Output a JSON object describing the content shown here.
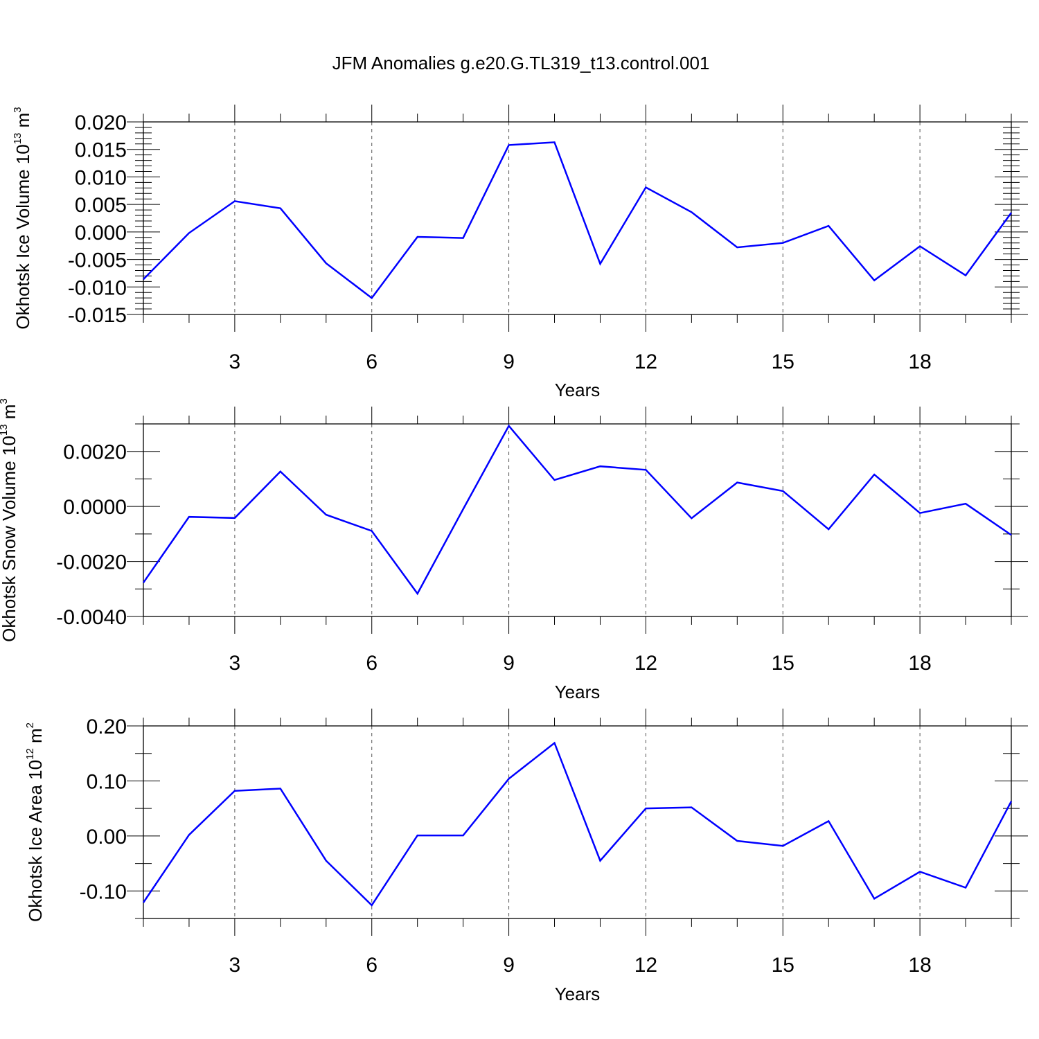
{
  "title": "JFM Anomalies g.e20.G.TL319_t13.control.001",
  "line_color": "#0000ff",
  "chart_data": [
    {
      "type": "line",
      "xlabel": "Years",
      "ylabel": {
        "text": "Okhotsk Ice Volume 10",
        "exp": "13",
        "unit": " m",
        "unit_exp": "3"
      },
      "xlim": [
        1,
        20
      ],
      "ylim": [
        -0.015,
        0.02
      ],
      "x_major_ticks": [
        3,
        6,
        9,
        12,
        15,
        18
      ],
      "x_tick_labels": [
        "3",
        "6",
        "9",
        "12",
        "15",
        "18"
      ],
      "y_major_ticks": [
        -0.015,
        -0.01,
        -0.005,
        0,
        0.005,
        0.01,
        0.015,
        0.02
      ],
      "y_tick_labels": [
        "-0.015",
        "-0.010",
        "-0.005",
        "0.000",
        "0.005",
        "0.010",
        "0.015",
        "0.020"
      ],
      "y_minor_step": 0.001,
      "grid": "vertical dashed at major x ticks",
      "x": [
        1,
        2,
        3,
        4,
        5,
        6,
        7,
        8,
        9,
        10,
        11,
        12,
        13,
        14,
        15,
        16,
        17,
        18,
        19,
        20
      ],
      "values": [
        -0.0086,
        -0.0002,
        0.0056,
        0.0043,
        -0.0057,
        -0.012,
        -0.0009,
        -0.0011,
        0.0158,
        0.0163,
        -0.0058,
        0.0081,
        0.0036,
        -0.0028,
        -0.002,
        0.0011,
        -0.0088,
        -0.0026,
        -0.0079,
        0.0035
      ]
    },
    {
      "type": "line",
      "xlabel": "Years",
      "ylabel": {
        "text": "Okhotsk Snow Volume 10",
        "exp": "13",
        "unit": " m",
        "unit_exp": "3"
      },
      "xlim": [
        1,
        20
      ],
      "ylim": [
        -0.004,
        0.003
      ],
      "x_major_ticks": [
        3,
        6,
        9,
        12,
        15,
        18
      ],
      "x_tick_labels": [
        "3",
        "6",
        "9",
        "12",
        "15",
        "18"
      ],
      "y_major_ticks": [
        -0.004,
        -0.002,
        0,
        0.002
      ],
      "y_tick_labels": [
        "-0.0040",
        "-0.0020",
        "0.0000",
        "0.0020"
      ],
      "y_minor_step": 0.001,
      "grid": "vertical dashed at major x ticks",
      "x": [
        1,
        2,
        3,
        4,
        5,
        6,
        7,
        8,
        9,
        10,
        11,
        12,
        13,
        14,
        15,
        16,
        17,
        18,
        19,
        20
      ],
      "values": [
        -0.00277,
        -0.00038,
        -0.00042,
        0.00127,
        -0.0003,
        -0.00089,
        -0.00317,
        -0.0001,
        0.00293,
        0.00096,
        0.00146,
        0.00133,
        -0.00043,
        0.00087,
        0.00056,
        -0.00083,
        0.00116,
        -0.00024,
        0.0001,
        -0.00104
      ]
    },
    {
      "type": "line",
      "xlabel": "Years",
      "ylabel": {
        "text": "Okhotsk Ice Area 10",
        "exp": "12",
        "unit": " m",
        "unit_exp": "2"
      },
      "xlim": [
        1,
        20
      ],
      "ylim": [
        -0.15,
        0.2
      ],
      "x_major_ticks": [
        3,
        6,
        9,
        12,
        15,
        18
      ],
      "x_tick_labels": [
        "3",
        "6",
        "9",
        "12",
        "15",
        "18"
      ],
      "y_major_ticks": [
        -0.1,
        0,
        0.1,
        0.2
      ],
      "y_tick_labels": [
        "-0.10",
        "0.00",
        "0.10",
        "0.20"
      ],
      "y_minor_step": 0.05,
      "grid": "vertical dashed at major x ticks",
      "x": [
        1,
        2,
        3,
        4,
        5,
        6,
        7,
        8,
        9,
        10,
        11,
        12,
        13,
        14,
        15,
        16,
        17,
        18,
        19,
        20
      ],
      "values": [
        -0.121,
        0.002,
        0.082,
        0.086,
        -0.045,
        -0.126,
        0.001,
        0.001,
        0.104,
        0.169,
        -0.045,
        0.05,
        0.052,
        -0.009,
        -0.018,
        0.027,
        -0.114,
        -0.065,
        -0.094,
        0.063
      ]
    }
  ]
}
